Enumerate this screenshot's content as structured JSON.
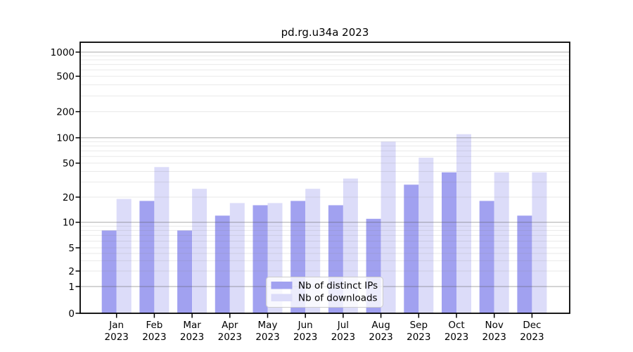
{
  "figure_title": "pd.rg.u34a 2023",
  "chart_data": {
    "type": "bar",
    "title": "pd.rg.u34a 2023",
    "xlabel": "",
    "ylabel": "",
    "year": "2023",
    "categories": [
      "Jan",
      "Feb",
      "Mar",
      "Apr",
      "May",
      "Jun",
      "Jul",
      "Aug",
      "Sep",
      "Oct",
      "Nov",
      "Dec"
    ],
    "series": [
      {
        "name": "Nb of distinct IPs",
        "color": "#a1a1f0",
        "values": [
          8,
          18,
          8,
          12,
          16,
          18,
          16,
          11,
          28,
          39,
          18,
          12
        ]
      },
      {
        "name": "Nb of downloads",
        "color": "#dcdcf9",
        "values": [
          19,
          45,
          25,
          17,
          17,
          25,
          33,
          90,
          58,
          110,
          39,
          39
        ]
      }
    ],
    "yscale": "symlog",
    "y_ticks": [
      1000,
      500,
      200,
      100,
      50,
      20,
      10,
      5,
      2,
      1,
      0
    ],
    "ylim": [
      0,
      1300
    ],
    "grid": true,
    "legend": {
      "position": "lower-center",
      "entries": [
        "Nb of distinct IPs",
        "Nb of downloads"
      ]
    }
  },
  "colors": {
    "background": "#ffffff",
    "bar_distinct_ips": "#a1a1f0",
    "bar_downloads": "#dcdcf9",
    "major_grid": "#ababab",
    "minor_grid": "#e7e7e7",
    "axis": "#000000",
    "legend_border": "#cccccc",
    "legend_background": "#ffffff"
  }
}
